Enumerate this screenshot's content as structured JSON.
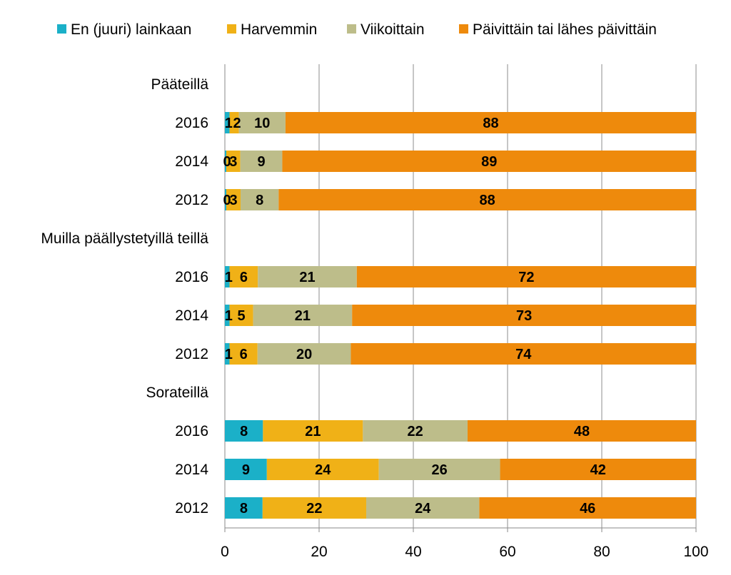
{
  "chart_data": {
    "type": "bar",
    "orientation": "horizontal",
    "stacked": true,
    "legend_position": "top",
    "grid": "vertical",
    "xlim": [
      0,
      100
    ],
    "x_ticks": [
      "0",
      "20",
      "40",
      "60",
      "80",
      "100"
    ],
    "rows": [
      {
        "label": "Pääteillä",
        "is_group": true
      },
      {
        "label": "2016",
        "values": [
          1,
          2,
          10,
          88
        ]
      },
      {
        "label": "2014",
        "values": [
          0,
          3,
          9,
          89
        ]
      },
      {
        "label": "2012",
        "values": [
          0,
          3,
          8,
          88
        ]
      },
      {
        "label": "Muilla päällystetyillä teillä",
        "is_group": true
      },
      {
        "label": "2016",
        "values": [
          1,
          6,
          21,
          72
        ]
      },
      {
        "label": "2014",
        "values": [
          1,
          5,
          21,
          73
        ]
      },
      {
        "label": "2012",
        "values": [
          1,
          6,
          20,
          74
        ]
      },
      {
        "label": "Sorateillä",
        "is_group": true
      },
      {
        "label": "2016",
        "values": [
          8,
          21,
          22,
          48
        ]
      },
      {
        "label": "2014",
        "values": [
          9,
          24,
          26,
          42
        ]
      },
      {
        "label": "2012",
        "values": [
          8,
          22,
          24,
          46
        ]
      }
    ],
    "series": [
      {
        "name": "En (juuri) lainkaan",
        "color": "#1bb0c8"
      },
      {
        "name": "Harvemmin",
        "color": "#f0b117"
      },
      {
        "name": "Viikoittain",
        "color": "#bdbd8a"
      },
      {
        "name": "Päivittäin tai lähes päivittäin",
        "color": "#ee8a0c"
      }
    ]
  }
}
